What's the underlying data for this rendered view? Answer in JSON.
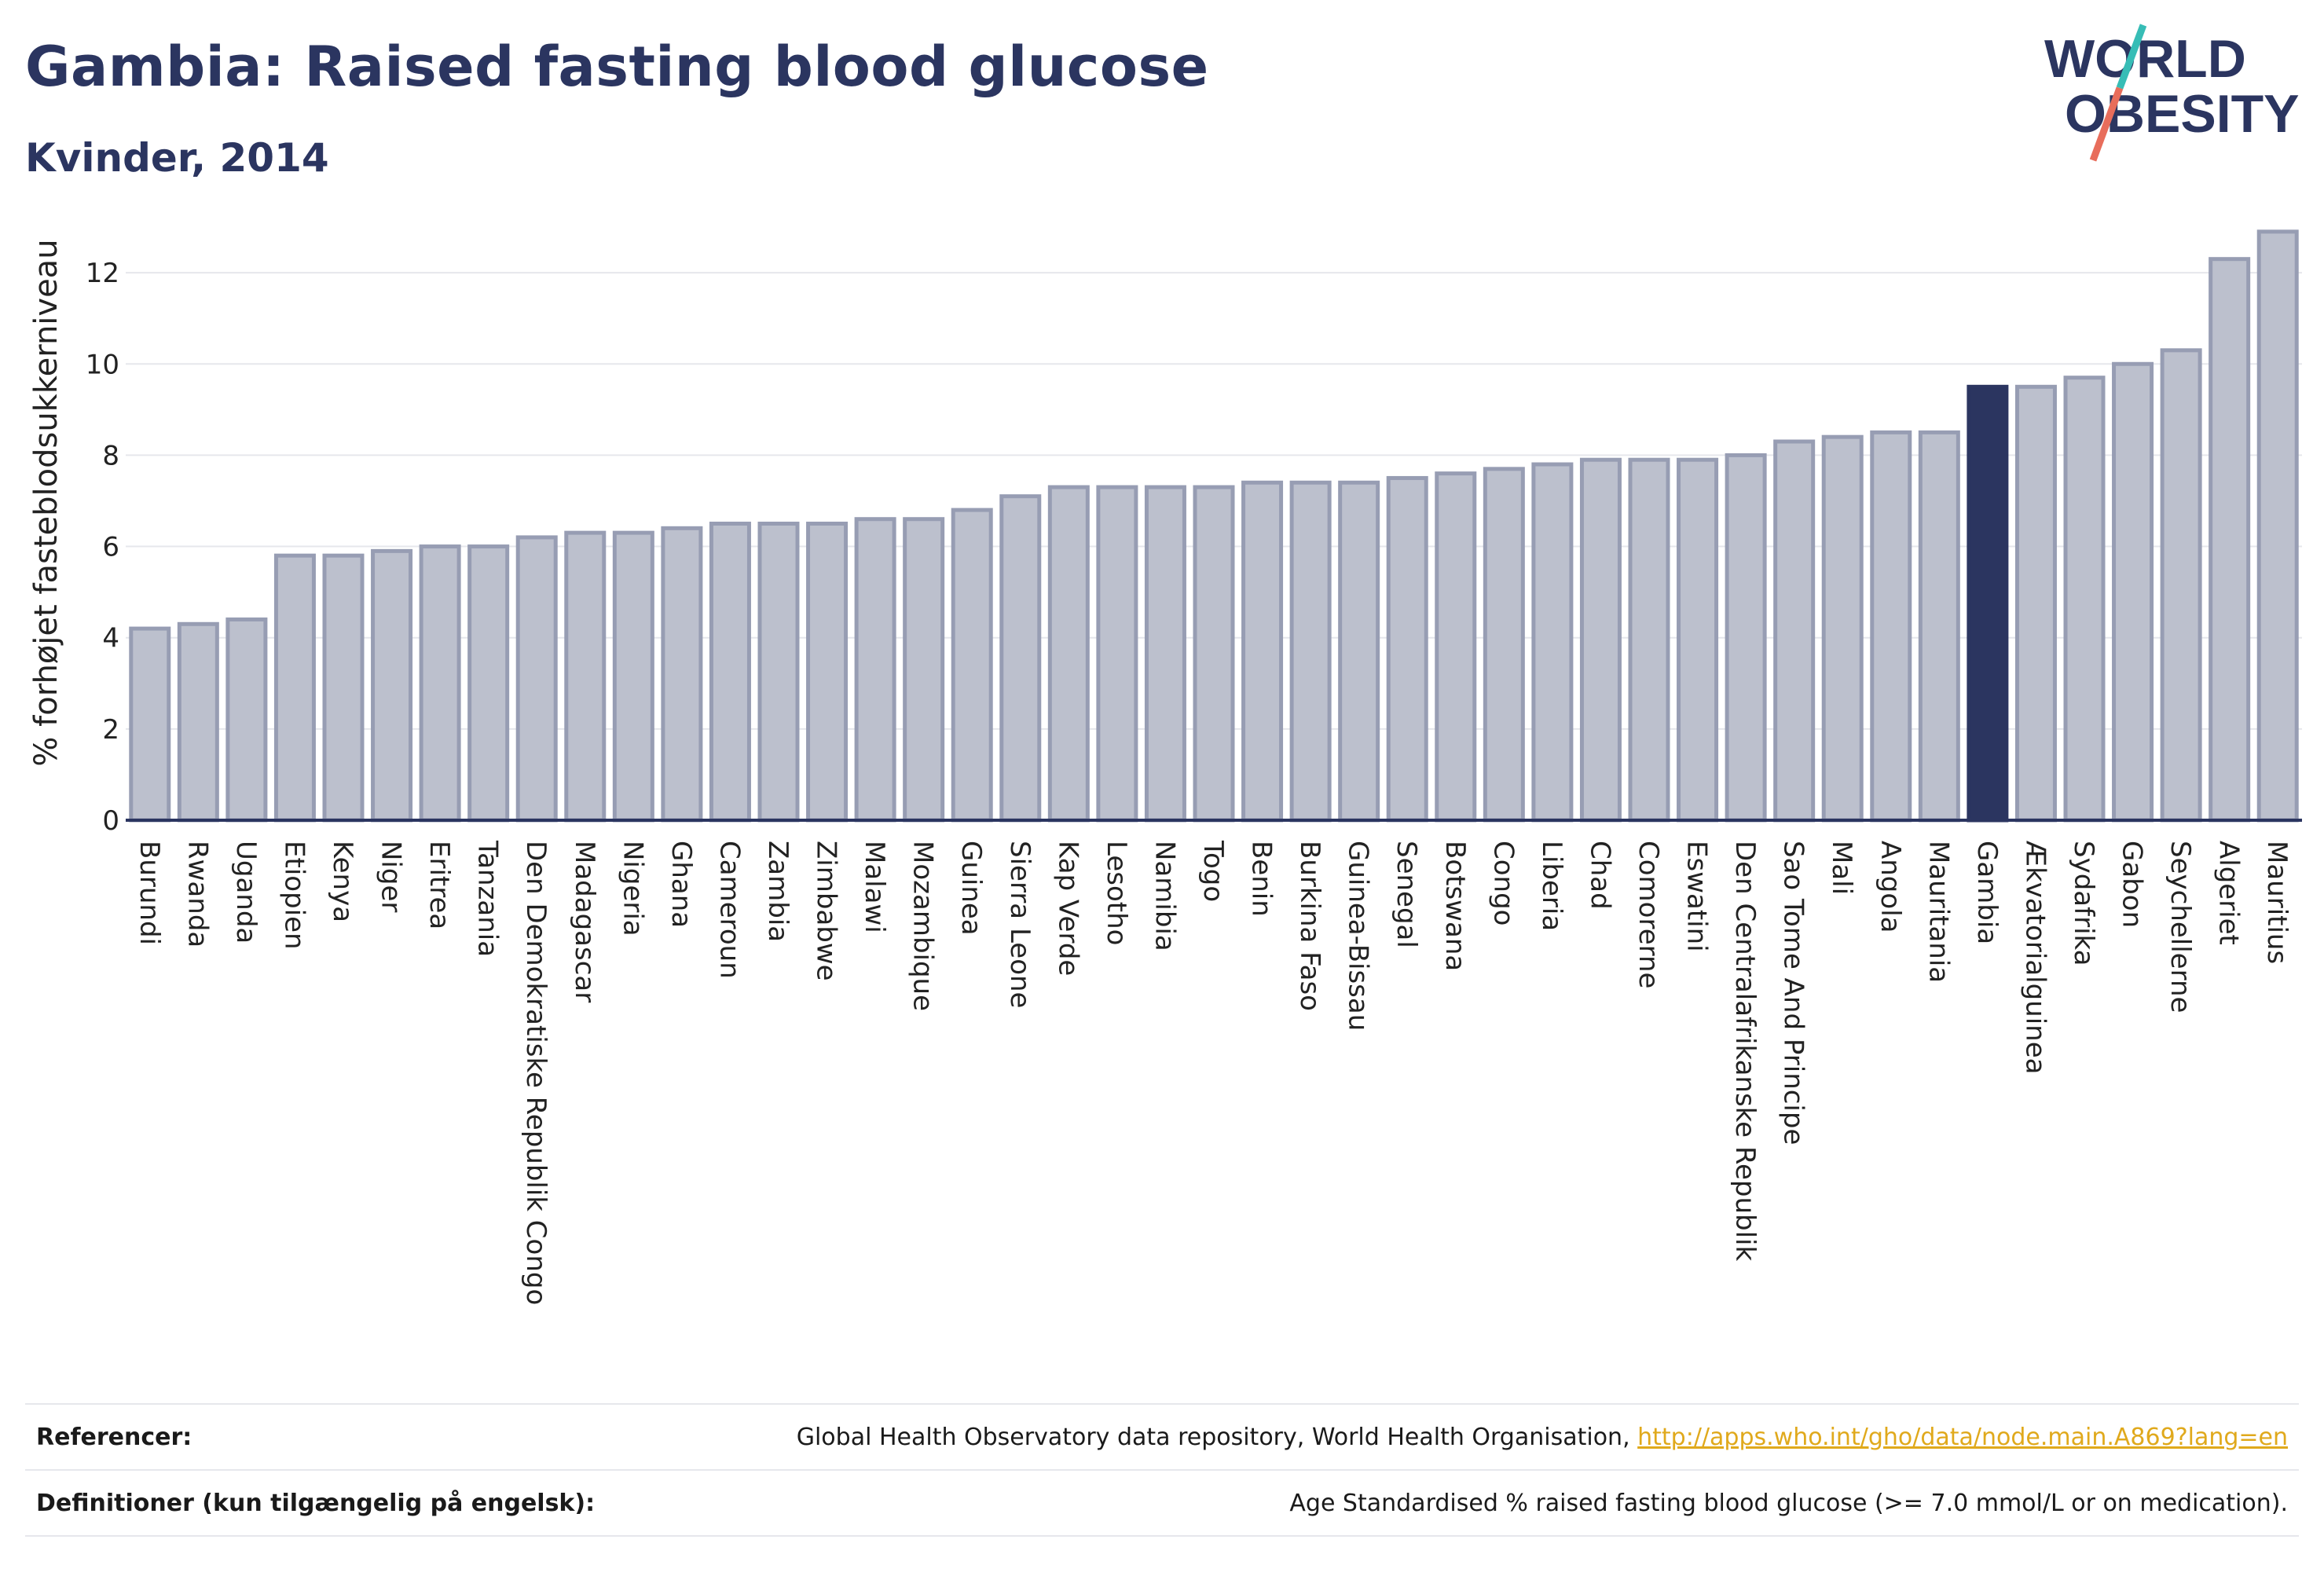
{
  "header": {
    "title": "Gambia: Raised fasting blood glucose",
    "subtitle": "Kvinder, 2014",
    "logo_line1": "WORLD",
    "logo_line2": "OBESITY"
  },
  "colors": {
    "bar": "#bcc0cd",
    "bar_outline": "#979db3",
    "highlight": "#2b3560",
    "grid": "#e6e7ec",
    "axis": "#2b3560",
    "logo_teal": "#37bdb6",
    "logo_red": "#e86d5b"
  },
  "chart_data": {
    "type": "bar",
    "ylabel": "% forhøjet fasteblodsukkerniveau",
    "ylim": [
      0,
      13.5
    ],
    "yticks": [
      0,
      2,
      4,
      6,
      8,
      10,
      12
    ],
    "grid": true,
    "highlight": "Gambia",
    "categories": [
      "Burundi",
      "Rwanda",
      "Uganda",
      "Etiopien",
      "Kenya",
      "Niger",
      "Eritrea",
      "Tanzania",
      "Den Demokratiske Republik Congo",
      "Madagascar",
      "Nigeria",
      "Ghana",
      "Cameroun",
      "Zambia",
      "Zimbabwe",
      "Malawi",
      "Mozambique",
      "Guinea",
      "Sierra Leone",
      "Kap Verde",
      "Lesotho",
      "Namibia",
      "Togo",
      "Benin",
      "Burkina Faso",
      "Guinea-Bissau",
      "Senegal",
      "Botswana",
      "Congo",
      "Liberia",
      "Chad",
      "Comorerne",
      "Eswatini",
      "Den Centralafrikanske Republik",
      "Sao Tome And Principe",
      "Mali",
      "Angola",
      "Mauritania",
      "Gambia",
      "Ækvatorialguinea",
      "Sydafrika",
      "Gabon",
      "Seychellerne",
      "Algeriet",
      "Mauritius"
    ],
    "values": [
      4.2,
      4.3,
      4.4,
      5.8,
      5.8,
      5.9,
      6.0,
      6.0,
      6.2,
      6.3,
      6.3,
      6.4,
      6.5,
      6.5,
      6.5,
      6.6,
      6.6,
      6.8,
      7.1,
      7.3,
      7.3,
      7.3,
      7.3,
      7.4,
      7.4,
      7.4,
      7.5,
      7.6,
      7.7,
      7.8,
      7.9,
      7.9,
      7.9,
      8.0,
      8.3,
      8.4,
      8.5,
      8.5,
      9.5,
      9.5,
      9.7,
      10.0,
      10.3,
      12.3,
      12.9
    ]
  },
  "footer": {
    "references_label": "Referencer:",
    "references_text": "Global Health Observatory data repository, World Health Organisation, ",
    "references_link": "http://apps.who.int/gho/data/node.main.A869?lang=en",
    "definitions_label": "Definitioner (kun tilgængelig på engelsk):",
    "definitions_text": "Age Standardised % raised fasting blood glucose (>= 7.0 mmol/L or on medication)."
  }
}
